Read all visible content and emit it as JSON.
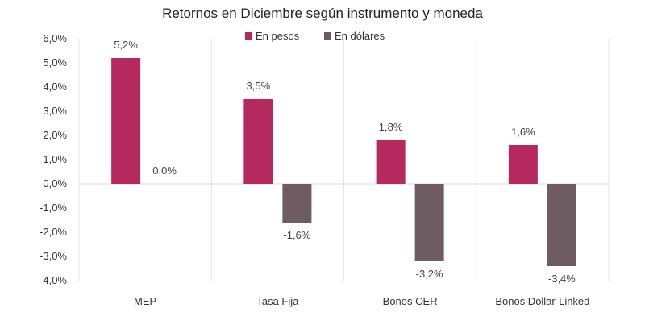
{
  "chart_data": {
    "type": "bar",
    "title": "Retornos en Diciembre según instrumento y moneda",
    "categories": [
      "MEP",
      "Tasa Fija",
      "Bonos CER",
      "Bonos Dollar-Linked"
    ],
    "series": [
      {
        "name": "En pesos",
        "color": "#B5295E",
        "values": [
          5.2,
          3.5,
          1.8,
          1.6
        ],
        "labels": [
          "5,2%",
          "3,5%",
          "1,8%",
          "1,6%"
        ]
      },
      {
        "name": "En dólares",
        "color": "#6F5B62",
        "values": [
          0.0,
          -1.6,
          -3.2,
          -3.4
        ],
        "labels": [
          "0,0%",
          "-1,6%",
          "-3,2%",
          "-3,4%"
        ]
      }
    ],
    "ylim": [
      -4.0,
      6.0
    ],
    "yticks": [
      6,
      5,
      4,
      3,
      2,
      1,
      0,
      -1,
      -2,
      -3,
      -4
    ],
    "ytick_labels": [
      "6,0%",
      "5,0%",
      "4,0%",
      "3,0%",
      "2,0%",
      "1,0%",
      "0,0%",
      "-1,0%",
      "-2,0%",
      "-3,0%",
      "-4,0%"
    ],
    "legend": "top-center",
    "grid": false,
    "category_separators": true
  }
}
